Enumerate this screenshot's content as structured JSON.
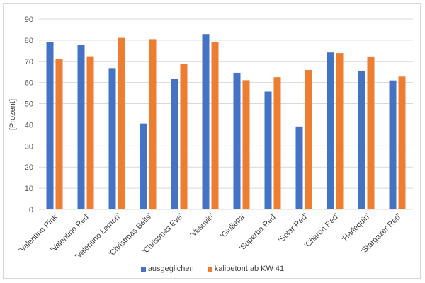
{
  "chart_data": {
    "type": "bar",
    "title": "",
    "xlabel": "",
    "ylabel": "[Prozent]",
    "ylim": [
      0,
      90
    ],
    "yticks": [
      0,
      10,
      20,
      30,
      40,
      50,
      60,
      70,
      80,
      90
    ],
    "grid": true,
    "legend_position": "bottom",
    "categories": [
      "'Valentino Pink'",
      "'Valentino Red'",
      "'Valentino Lemon'",
      "'Christmas Bells'",
      "'Christmas Eve'",
      "'Vesuvio'",
      "'Giulietta'",
      "'Superba Red'",
      "'Solar Red'",
      "'Charon Red'",
      "'Harlequin'",
      "'Stargazer Red'"
    ],
    "series": [
      {
        "name": "ausgeglichen",
        "color": "#4472c4",
        "values": [
          79.2,
          77.7,
          66.8,
          40.6,
          61.8,
          82.9,
          64.6,
          55.7,
          39.2,
          74.2,
          65.3,
          61.0
        ]
      },
      {
        "name": "kalibetont ab KW 41",
        "color": "#ed7d31",
        "values": [
          71.0,
          72.4,
          81.1,
          80.5,
          68.8,
          79.0,
          61.1,
          62.5,
          65.9,
          73.9,
          72.3,
          62.8
        ]
      }
    ]
  }
}
